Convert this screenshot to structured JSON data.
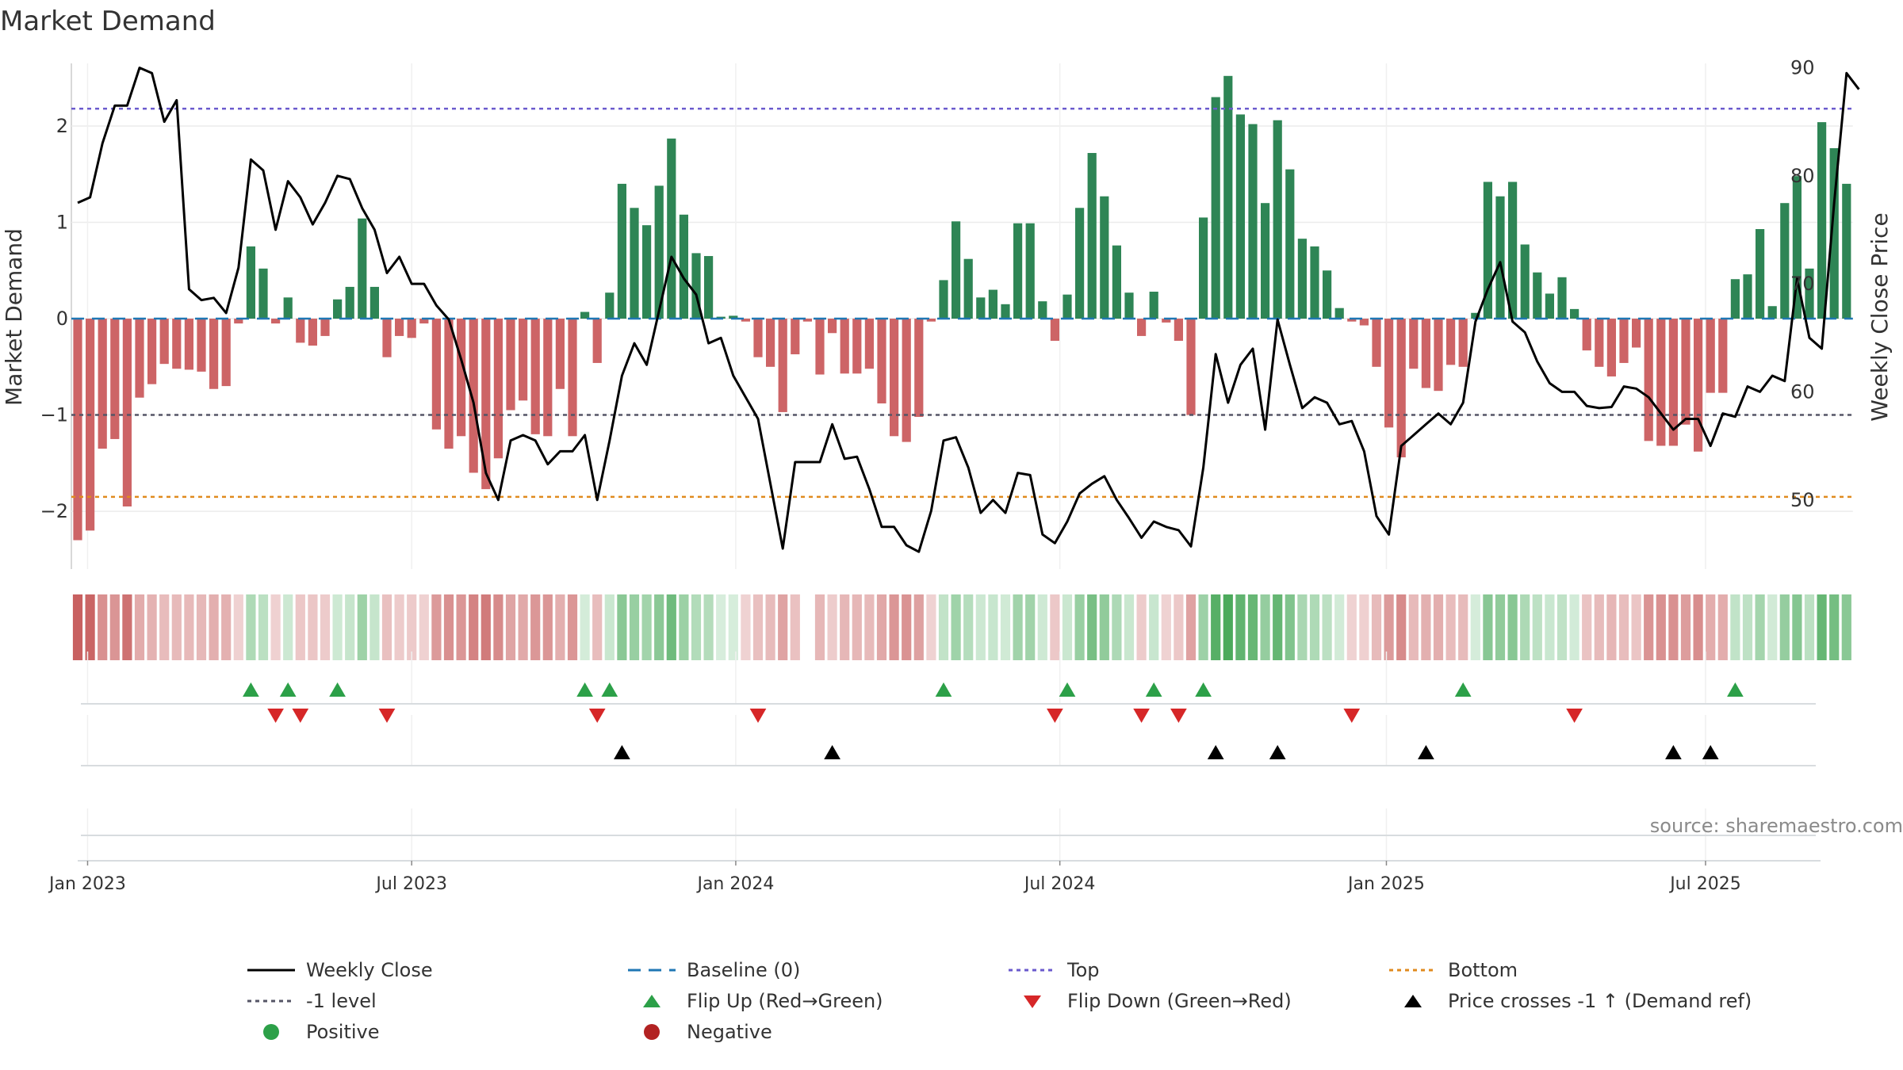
{
  "title": "Market Demand",
  "source_label": "source: sharemaestro.com",
  "chart_data": {
    "type": "bar",
    "title": "Market Demand",
    "ylabel_left": "Market Demand",
    "ylabel_right": "Weekly Close Price",
    "ylim_left": [
      -2.6,
      2.65
    ],
    "ylim_right": [
      43.6,
      90.4
    ],
    "yticks_left": [
      {
        "v": 2,
        "t": "2"
      },
      {
        "v": 1,
        "t": "1"
      },
      {
        "v": 0,
        "t": "0"
      },
      {
        "v": -1,
        "t": "−1"
      },
      {
        "v": -2,
        "t": "−2"
      }
    ],
    "yticks_right": [
      {
        "v": 90,
        "t": "90"
      },
      {
        "v": 80,
        "t": "80"
      },
      {
        "v": 70,
        "t": "70"
      },
      {
        "v": 60,
        "t": "60"
      },
      {
        "v": 50,
        "t": "50"
      }
    ],
    "xticks": [
      {
        "i": 0.8,
        "t": "Jan 2023"
      },
      {
        "i": 27,
        "t": "Jul 2023"
      },
      {
        "i": 53.2,
        "t": "Jan 2024"
      },
      {
        "i": 79.4,
        "t": "Jul 2024"
      },
      {
        "i": 105.8,
        "t": "Jan 2025"
      },
      {
        "i": 131.6,
        "t": "Jul 2025"
      }
    ],
    "levels": {
      "top": 2.18,
      "minus_one": -1.0,
      "bottom": -1.85,
      "baseline": 0
    },
    "demand": [
      -2.3,
      -2.2,
      -1.35,
      -1.25,
      -1.95,
      -0.82,
      -0.68,
      -0.47,
      -0.52,
      -0.53,
      -0.55,
      -0.73,
      -0.7,
      -0.05,
      0.75,
      0.52,
      -0.05,
      0.22,
      -0.25,
      -0.28,
      -0.18,
      0.2,
      0.33,
      1.04,
      0.33,
      -0.4,
      -0.18,
      -0.2,
      -0.05,
      -1.15,
      -1.35,
      -1.22,
      -1.6,
      -1.77,
      -1.45,
      -0.95,
      -0.85,
      -1.2,
      -1.22,
      -0.73,
      -1.22,
      0.07,
      -0.46,
      0.27,
      1.4,
      1.15,
      0.97,
      1.38,
      1.87,
      1.08,
      0.68,
      0.65,
      0.02,
      0.03,
      -0.03,
      -0.4,
      -0.5,
      -0.97,
      -0.37,
      -0.03,
      -0.58,
      -0.15,
      -0.57,
      -0.57,
      -0.52,
      -0.88,
      -1.22,
      -1.28,
      -1.02,
      -0.03,
      0.4,
      1.01,
      0.62,
      0.22,
      0.3,
      0.15,
      0.99,
      0.99,
      0.18,
      -0.23,
      0.25,
      1.15,
      1.72,
      1.27,
      0.76,
      0.27,
      -0.18,
      0.28,
      -0.04,
      -0.23,
      -1.0,
      1.05,
      2.3,
      2.52,
      2.12,
      2.02,
      1.2,
      2.06,
      1.55,
      0.83,
      0.75,
      0.5,
      0.11,
      -0.03,
      -0.07,
      -0.5,
      -1.13,
      -1.44,
      -0.52,
      -0.72,
      -0.75,
      -0.48,
      -0.5,
      0.06,
      1.42,
      1.27,
      1.42,
      0.77,
      0.48,
      0.26,
      0.43,
      0.1,
      -0.33,
      -0.5,
      -0.6,
      -0.46,
      -0.3,
      -1.27,
      -1.32,
      -1.32,
      -1.1,
      -1.38,
      -0.77,
      -0.77,
      0.41,
      0.46,
      0.93,
      0.13,
      1.2,
      1.48,
      0.52,
      2.04,
      1.77,
      1.4
    ],
    "weekly_close": [
      77.5,
      78.0,
      83.0,
      86.5,
      86.5,
      90.0,
      89.5,
      85.0,
      87.0,
      69.5,
      68.5,
      68.7,
      67.3,
      71.5,
      81.5,
      80.5,
      75.0,
      79.5,
      78.0,
      75.5,
      77.5,
      80.0,
      79.7,
      77.0,
      75.0,
      71.0,
      72.5,
      70.0,
      70.0,
      68.0,
      66.7,
      63.0,
      59.0,
      52.5,
      50.0,
      55.5,
      56.0,
      55.5,
      53.3,
      54.5,
      54.5,
      56.0,
      50.0,
      55.5,
      61.5,
      64.5,
      62.5,
      67.5,
      72.5,
      70.5,
      69.0,
      64.5,
      65.0,
      61.5,
      59.5,
      57.5,
      51.5,
      45.5,
      53.5,
      53.5,
      53.5,
      57.0,
      53.8,
      54.0,
      51.0,
      47.5,
      47.5,
      45.8,
      45.2,
      49.0,
      55.5,
      55.8,
      53.0,
      48.8,
      50.0,
      48.8,
      52.5,
      52.3,
      46.8,
      46.0,
      48.0,
      50.6,
      51.5,
      52.2,
      50.0,
      48.3,
      46.5,
      48.0,
      47.5,
      47.2,
      45.7,
      53.0,
      63.5,
      59.0,
      62.5,
      64.0,
      56.5,
      66.7,
      62.5,
      58.5,
      59.5,
      59.0,
      57.0,
      57.3,
      54.5,
      48.5,
      46.8,
      55.0,
      56.0,
      57.0,
      58.0,
      57.0,
      59.0,
      66.5,
      69.5,
      72.0,
      66.5,
      65.5,
      62.8,
      60.8,
      60.0,
      60.0,
      58.7,
      58.5,
      58.6,
      60.5,
      60.3,
      59.5,
      58.0,
      56.5,
      57.5,
      57.5,
      55.0,
      58.0,
      57.7,
      60.5,
      60.0,
      61.5,
      61.0,
      70.5,
      65.0,
      64.0,
      77.5,
      89.5,
      88.0
    ],
    "signals": {
      "flip_up_index": [
        14,
        17,
        21,
        41,
        43,
        70,
        80,
        87,
        91,
        112,
        134
      ],
      "flip_down_index": [
        16,
        18,
        25,
        42,
        55,
        79,
        86,
        89,
        103,
        121
      ],
      "price_cross_index": [
        44,
        61,
        92,
        97,
        109,
        129,
        132
      ]
    },
    "heat_gap_index": 59,
    "legend": [
      {
        "key": "weekly_close",
        "label": "Weekly Close"
      },
      {
        "key": "baseline",
        "label": "Baseline (0)"
      },
      {
        "key": "top",
        "label": "Top"
      },
      {
        "key": "bottom",
        "label": "Bottom"
      },
      {
        "key": "minus_one",
        "label": "-1 level"
      },
      {
        "key": "flip_up",
        "label": "Flip Up (Red→Green)"
      },
      {
        "key": "flip_down",
        "label": "Flip Down (Green→Red)"
      },
      {
        "key": "price_cross",
        "label": "Price crosses -1 ↑ (Demand ref)"
      },
      {
        "key": "positive",
        "label": "Positive"
      },
      {
        "key": "negative",
        "label": "Negative"
      }
    ],
    "colors": {
      "positive_bar": "#2e8555",
      "negative_bar": "#cd6466",
      "weekly_close": "#000000",
      "baseline": "#1f77b4",
      "top": "#6a5acd",
      "minus_one": "#555566",
      "bottom": "#e08a1e",
      "flip_up": "#2ca048",
      "flip_down": "#d62728",
      "price_cross": "#000000",
      "positive_marker": "#2ca048",
      "negative_marker": "#b22222"
    }
  }
}
